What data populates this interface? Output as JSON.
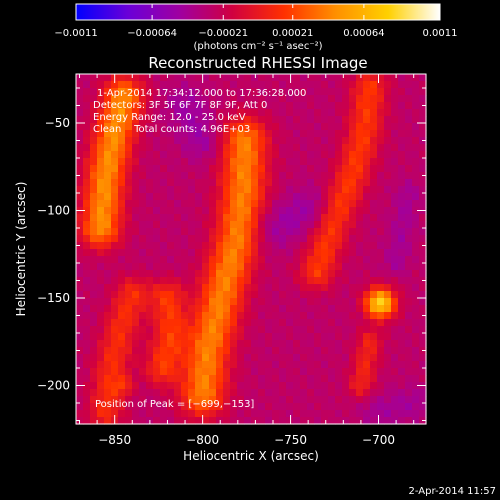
{
  "chart_data": {
    "type": "heatmap",
    "title": "Reconstructed RHESSI Image",
    "xlabel": "Heliocentric X (arcsec)",
    "ylabel": "Heliocentric Y (arcsec)",
    "xlim": [
      -872,
      -673
    ],
    "ylim": [
      -222,
      -22
    ],
    "xticks": [
      {
        "value": -850,
        "label": "−850"
      },
      {
        "value": -800,
        "label": "−800"
      },
      {
        "value": -750,
        "label": "−750"
      },
      {
        "value": -700,
        "label": "−700"
      }
    ],
    "yticks": [
      {
        "value": -50,
        "label": "−50"
      },
      {
        "value": -100,
        "label": "−100"
      },
      {
        "value": -150,
        "label": "−150"
      },
      {
        "value": -200,
        "label": "−200"
      }
    ],
    "colorbar": {
      "min": -0.0011,
      "max": 0.0011,
      "ticks": [
        {
          "value": -0.0011,
          "label": "−0.0011"
        },
        {
          "value": -0.00064,
          "label": "−0.00064"
        },
        {
          "value": -0.00021,
          "label": "−0.00021"
        },
        {
          "value": 0.00021,
          "label": "0.00021"
        },
        {
          "value": 0.00064,
          "label": "0.00064"
        },
        {
          "value": 0.0011,
          "label": "0.0011"
        }
      ],
      "unit_label": "(photons cm⁻² s⁻¹ asec⁻²)",
      "stops": [
        "#0000ff",
        "#6a00d8",
        "#a000a0",
        "#d00040",
        "#ff3000",
        "#ff9000",
        "#ffd000",
        "#ffffff"
      ]
    },
    "annotations": [
      "1-Apr-2014 17:34:12.000 to 17:36:28.000",
      "Detectors: 3F 5F 6F 7F 8F 9F, Att 0",
      "Energy Range: 12.0 - 25.0 keV",
      "Clean    Total counts: 4.96E+03"
    ],
    "peak_label": "Position of Peak = [−699,−153]",
    "peak": {
      "x": -699,
      "y": -153
    },
    "sources": [
      {
        "path": [
          [
            -858,
            -110
          ],
          [
            -855,
            -80
          ],
          [
            -850,
            -55
          ],
          [
            -845,
            -35
          ]
        ],
        "sigma": 8,
        "amp": 0.00075
      },
      {
        "path": [
          [
            -855,
            -215
          ],
          [
            -852,
            -190
          ],
          [
            -846,
            -165
          ],
          [
            -840,
            -148
          ]
        ],
        "sigma": 7,
        "amp": 0.0004
      },
      {
        "path": [
          [
            -800,
            -205
          ],
          [
            -797,
            -180
          ],
          [
            -792,
            -160
          ],
          [
            -787,
            -140
          ],
          [
            -780,
            -115
          ],
          [
            -777,
            -90
          ],
          [
            -776,
            -60
          ]
        ],
        "sigma": 9,
        "amp": 0.0007
      },
      {
        "path": [
          [
            -823,
            -190
          ],
          [
            -818,
            -170
          ],
          [
            -820,
            -150
          ]
        ],
        "sigma": 7,
        "amp": 0.00045
      },
      {
        "path": [
          [
            -735,
            -135
          ],
          [
            -725,
            -105
          ],
          [
            -715,
            -80
          ],
          [
            -708,
            -55
          ],
          [
            -705,
            -30
          ]
        ],
        "sigma": 7,
        "amp": 0.00045
      },
      {
        "path": [
          [
            -699,
            -153
          ]
        ],
        "sigma": 6,
        "amp": 0.0011
      },
      {
        "path": [
          [
            -705,
            -175
          ],
          [
            -710,
            -200
          ]
        ],
        "sigma": 5,
        "amp": 0.00035
      },
      {
        "path": [
          [
            -690,
            -130
          ],
          [
            -683,
            -90
          ]
        ],
        "sigma": 5,
        "amp": -0.00015
      },
      {
        "path": [
          [
            -800,
            -60
          ],
          [
            -810,
            -40
          ]
        ],
        "sigma": 8,
        "amp": -0.0002
      },
      {
        "path": [
          [
            -760,
            -110
          ],
          [
            -740,
            -100
          ]
        ],
        "sigma": 9,
        "amp": -0.0002
      },
      {
        "path": [
          [
            -680,
            -210
          ],
          [
            -700,
            -215
          ]
        ],
        "sigma": 7,
        "amp": -0.00015
      },
      {
        "path": [
          [
            -845,
            -200
          ]
        ],
        "sigma": 4,
        "amp": 0.00025
      }
    ],
    "background": -0.00028
  },
  "footer": {
    "timestamp": "2-Apr-2014 11:57"
  }
}
